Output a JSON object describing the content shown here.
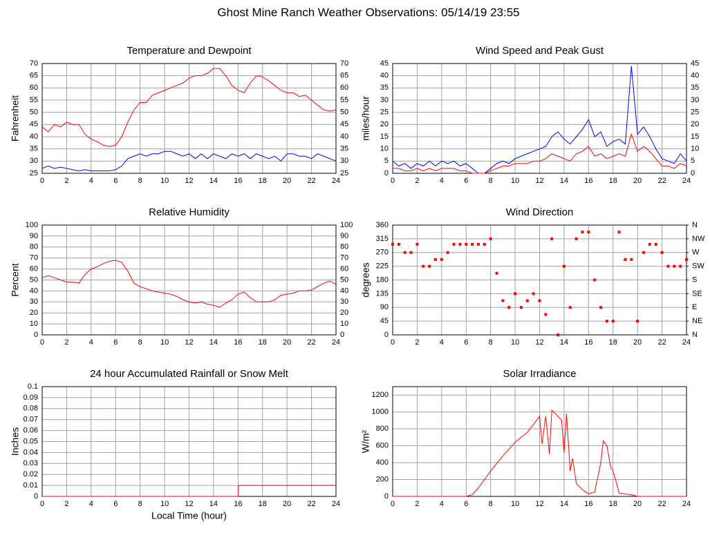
{
  "title": "Ghost Mine Ranch Weather Observations: 05/14/19 23:55",
  "chart_data": [
    {
      "type": "line",
      "title": "Temperature and Dewpoint",
      "ylabel": "Fahrenheit",
      "right_axis_labels": true,
      "grid": true,
      "x": [
        0,
        0.5,
        1,
        1.5,
        2,
        2.5,
        3,
        3.5,
        4,
        4.5,
        5,
        5.5,
        6,
        6.5,
        7,
        7.5,
        8,
        8.5,
        9,
        9.5,
        10,
        10.5,
        11,
        11.5,
        12,
        12.5,
        13,
        13.5,
        14,
        14.5,
        15,
        15.5,
        16,
        16.5,
        17,
        17.5,
        18,
        18.5,
        19,
        19.5,
        20,
        20.5,
        21,
        21.5,
        22,
        22.5,
        23,
        23.5,
        24
      ],
      "xlim": [
        0,
        24
      ],
      "xticks": [
        0,
        2,
        4,
        6,
        8,
        10,
        12,
        14,
        16,
        18,
        20,
        22,
        24
      ],
      "ylim": [
        25,
        70
      ],
      "yticks": [
        25,
        30,
        35,
        40,
        45,
        50,
        55,
        60,
        65,
        70
      ],
      "series": [
        {
          "name": "Temperature",
          "color": "#ff0000",
          "values": [
            44,
            42,
            45,
            44,
            46,
            45,
            45,
            41,
            39,
            38,
            36.5,
            36,
            36.5,
            40,
            46,
            51,
            54,
            54,
            57,
            58,
            59,
            60,
            61,
            62,
            64,
            65,
            65,
            66,
            68,
            68,
            65,
            61,
            59,
            58,
            62,
            65,
            64.5,
            63,
            61,
            59,
            58,
            58,
            56.5,
            57,
            55,
            53,
            51,
            50.5,
            51
          ]
        },
        {
          "name": "Dewpoint",
          "color": "#0000ff",
          "values": [
            27,
            28,
            27,
            27.5,
            27,
            26.5,
            26,
            26.5,
            26,
            26,
            26,
            26,
            26.5,
            28,
            31,
            32,
            33,
            32,
            33,
            33,
            34,
            34,
            33,
            32,
            33,
            31,
            33,
            31,
            33,
            32,
            31,
            33,
            32,
            33,
            31,
            33,
            32,
            31,
            32,
            30,
            33,
            33,
            32,
            32,
            31,
            33,
            32,
            31,
            30
          ]
        }
      ]
    },
    {
      "type": "line",
      "title": "Wind Speed and Peak Gust",
      "ylabel": "miles/hour",
      "right_axis_labels": true,
      "grid": true,
      "x": [
        0,
        0.5,
        1,
        1.5,
        2,
        2.5,
        3,
        3.5,
        4,
        4.5,
        5,
        5.5,
        6,
        6.5,
        7,
        7.5,
        8,
        8.5,
        9,
        9.5,
        10,
        10.5,
        11,
        11.5,
        12,
        12.5,
        13,
        13.5,
        14,
        14.5,
        15,
        15.5,
        16,
        16.5,
        17,
        17.5,
        18,
        18.5,
        19,
        19.5,
        20,
        20.5,
        21,
        21.5,
        22,
        22.5,
        23,
        23.5,
        24
      ],
      "xlim": [
        0,
        24
      ],
      "xticks": [
        0,
        2,
        4,
        6,
        8,
        10,
        12,
        14,
        16,
        18,
        20,
        22,
        24
      ],
      "ylim": [
        0,
        45
      ],
      "yticks": [
        0,
        5,
        10,
        15,
        20,
        25,
        30,
        35,
        40,
        45
      ],
      "series": [
        {
          "name": "Peak Gust",
          "color": "#0000ff",
          "values": [
            5,
            3,
            4,
            2,
            4,
            3,
            5,
            3,
            5,
            4,
            5,
            3,
            4,
            2,
            0,
            0,
            2,
            4,
            5,
            4,
            6,
            7,
            8,
            9,
            10,
            11,
            15,
            17,
            14,
            12,
            15,
            18,
            22,
            15,
            17,
            11,
            13,
            14,
            12,
            44,
            16,
            19,
            15,
            10,
            6,
            5,
            4,
            8,
            5
          ]
        },
        {
          "name": "Wind Speed",
          "color": "#ff0000",
          "values": [
            2,
            2,
            1,
            1,
            2,
            1,
            2,
            1,
            2,
            2,
            2,
            1,
            1,
            0,
            0,
            0,
            1,
            2,
            3,
            3,
            4,
            4,
            4,
            5,
            5,
            6,
            8,
            7,
            6,
            5,
            8,
            9,
            11,
            7,
            8,
            6,
            7,
            8,
            7,
            16,
            9,
            11,
            9,
            6,
            3,
            3,
            2,
            4,
            3
          ]
        }
      ]
    },
    {
      "type": "line",
      "title": "Relative Humidity",
      "ylabel": "Percent",
      "right_axis_labels": true,
      "grid": true,
      "x": [
        0,
        0.5,
        1,
        1.5,
        2,
        2.5,
        3,
        3.5,
        4,
        4.5,
        5,
        5.5,
        6,
        6.5,
        7,
        7.5,
        8,
        8.5,
        9,
        9.5,
        10,
        10.5,
        11,
        11.5,
        12,
        12.5,
        13,
        13.5,
        14,
        14.5,
        15,
        15.5,
        16,
        16.5,
        17,
        17.5,
        18,
        18.5,
        19,
        19.5,
        20,
        20.5,
        21,
        21.5,
        22,
        22.5,
        23,
        23.5,
        24
      ],
      "xlim": [
        0,
        24
      ],
      "xticks": [
        0,
        2,
        4,
        6,
        8,
        10,
        12,
        14,
        16,
        18,
        20,
        22,
        24
      ],
      "ylim": [
        0,
        100
      ],
      "yticks": [
        0,
        10,
        20,
        30,
        40,
        50,
        60,
        70,
        80,
        90,
        100
      ],
      "series": [
        {
          "name": "Relative Humidity",
          "color": "#ff0000",
          "values": [
            52,
            54,
            52,
            50,
            48,
            48,
            47,
            55,
            60,
            62,
            65,
            67,
            68,
            66,
            58,
            47,
            44,
            42,
            40,
            39,
            38,
            37,
            35,
            32,
            30,
            29,
            30,
            28,
            27,
            25,
            29,
            32,
            37,
            39,
            34,
            30,
            30,
            30,
            32,
            36,
            37,
            38,
            40,
            40,
            41,
            44,
            47,
            49,
            46
          ]
        }
      ]
    },
    {
      "type": "scatter",
      "title": "Wind Direction",
      "ylabel": "degrees",
      "grid": true,
      "x": [
        0,
        0.5,
        1,
        1.5,
        2,
        2.5,
        3,
        3.5,
        4,
        4.5,
        5,
        5.5,
        6,
        6.5,
        7,
        7.5,
        8,
        8.5,
        9,
        9.5,
        10,
        10.5,
        11,
        11.5,
        12,
        12.5,
        13,
        13.5,
        14,
        14.5,
        15,
        15.5,
        16,
        16.5,
        17,
        17.5,
        18,
        18.5,
        19,
        19.5,
        20,
        20.5,
        21,
        21.5,
        22,
        22.5,
        23,
        23.5,
        24
      ],
      "xlim": [
        0,
        24
      ],
      "xticks": [
        0,
        2,
        4,
        6,
        8,
        10,
        12,
        14,
        16,
        18,
        20,
        22,
        24
      ],
      "ylim": [
        0,
        360
      ],
      "yticks": [
        0,
        45,
        90,
        135,
        180,
        225,
        270,
        315,
        360
      ],
      "y2lim": [
        0,
        360
      ],
      "y2ticks": [
        {
          "value": 0,
          "label": "N"
        },
        {
          "value": 45,
          "label": "NE"
        },
        {
          "value": 90,
          "label": "E"
        },
        {
          "value": 135,
          "label": "SE"
        },
        {
          "value": 180,
          "label": "S"
        },
        {
          "value": 225,
          "label": "SW"
        },
        {
          "value": 270,
          "label": "W"
        },
        {
          "value": 315,
          "label": "NW"
        },
        {
          "value": 360,
          "label": "N"
        }
      ],
      "series": [
        {
          "name": "Wind Direction",
          "color": "#ff0000",
          "values": [
            297,
            297,
            270,
            270,
            297,
            225,
            225,
            247,
            247,
            270,
            297,
            297,
            297,
            297,
            297,
            297,
            315,
            202,
            112,
            90,
            135,
            90,
            112,
            135,
            112,
            67,
            315,
            0,
            225,
            90,
            315,
            337,
            337,
            180,
            90,
            45,
            45,
            337,
            247,
            247,
            45,
            270,
            297,
            297,
            270,
            225,
            225,
            225,
            247
          ]
        }
      ]
    },
    {
      "type": "line",
      "title": "24 hour Accumulated Rainfall or Snow Melt",
      "ylabel": "Inches",
      "xlabel": "Local Time (hour)",
      "grid": true,
      "x": [
        0,
        16,
        16.05,
        24
      ],
      "xlim": [
        0,
        24
      ],
      "xticks": [
        0,
        2,
        4,
        6,
        8,
        10,
        12,
        14,
        16,
        18,
        20,
        22,
        24
      ],
      "ylim": [
        0,
        0.1
      ],
      "yticks": [
        0,
        0.01,
        0.02,
        0.03,
        0.04,
        0.05,
        0.06,
        0.07,
        0.08,
        0.09,
        0.1
      ],
      "series": [
        {
          "name": "Rainfall",
          "color": "#ff0000",
          "values": [
            0,
            0,
            0.01,
            0.01
          ]
        }
      ]
    },
    {
      "type": "line",
      "title": "Solar Irradiance",
      "ylabel": "W/m²",
      "grid": true,
      "x": [
        0,
        6,
        6.5,
        7,
        8,
        9,
        10,
        11,
        11.5,
        12,
        12.2,
        12.5,
        12.8,
        13,
        13.5,
        13.8,
        14,
        14.2,
        14.5,
        14.7,
        15,
        15.5,
        16,
        16.5,
        17,
        17.2,
        17.5,
        17.8,
        18,
        18.3,
        18.5,
        19,
        19.5,
        20,
        24
      ],
      "xlim": [
        0,
        24
      ],
      "xticks": [
        0,
        2,
        4,
        6,
        8,
        10,
        12,
        14,
        16,
        18,
        20,
        22,
        24
      ],
      "ylim": [
        0,
        1300
      ],
      "yticks": [
        0,
        200,
        400,
        600,
        800,
        1000,
        1200
      ],
      "series": [
        {
          "name": "Solar Irradiance",
          "color": "#ff0000",
          "values": [
            0,
            0,
            20,
            100,
            300,
            480,
            640,
            760,
            850,
            950,
            620,
            950,
            500,
            1020,
            950,
            900,
            520,
            980,
            300,
            450,
            150,
            80,
            30,
            50,
            400,
            660,
            600,
            350,
            300,
            150,
            40,
            30,
            20,
            0,
            0
          ]
        }
      ]
    }
  ]
}
